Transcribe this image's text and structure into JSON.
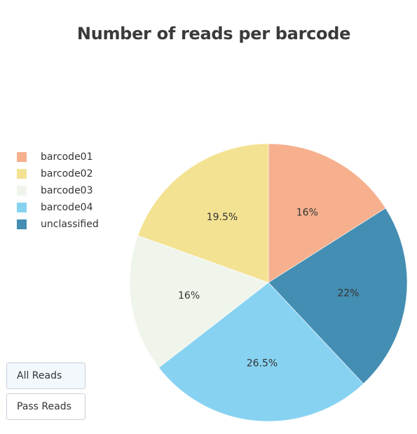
{
  "chart_data": {
    "type": "pie",
    "title": "Number of reads per barcode",
    "labels": [
      "barcode01",
      "barcode02",
      "barcode03",
      "barcode04",
      "unclassified"
    ],
    "values": [
      16,
      19.5,
      16,
      26.5,
      22
    ],
    "value_labels": [
      "16%",
      "19.5%",
      "16%",
      "26.5%",
      "22%"
    ],
    "slice_order_clockwise_from_top": [
      "barcode01",
      "unclassified",
      "barcode04",
      "barcode03",
      "barcode02"
    ],
    "colors": {
      "barcode01": "#f6b08e",
      "barcode02": "#f3e292",
      "barcode03": "#f0f5ec",
      "barcode04": "#87d2f1",
      "unclassified": "#448eb3"
    },
    "legend_position": "top-left"
  },
  "buttons": {
    "all_reads": "All Reads",
    "pass_reads": "Pass Reads"
  }
}
